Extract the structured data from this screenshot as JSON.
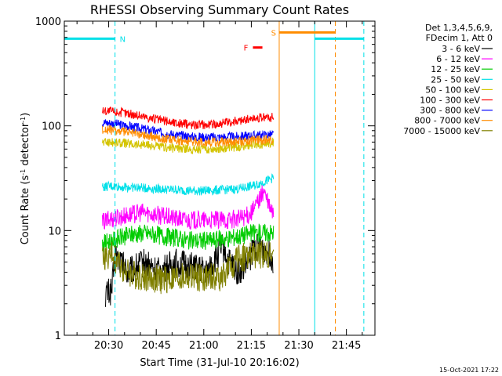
{
  "chart_data": {
    "type": "line",
    "title": "RHESSI Observing Summary Count Rates",
    "xlabel": "Start Time (31-Jul-10 20:16:02)",
    "ylabel_main": "Count Rate (s",
    "ylabel_sup1": "-1",
    "ylabel_mid": " detector",
    "ylabel_sup2": "-1",
    "ylabel_end": ")",
    "yscale": "log",
    "ylim": [
      1,
      1000
    ],
    "xlim_minutes": [
      0,
      98
    ],
    "x_ticks": [
      {
        "minutes": 14,
        "label": "20:30"
      },
      {
        "minutes": 29,
        "label": "20:45"
      },
      {
        "minutes": 44,
        "label": "21:00"
      },
      {
        "minutes": 59,
        "label": "21:15"
      },
      {
        "minutes": 74,
        "label": "21:30"
      },
      {
        "minutes": 89,
        "label": "21:45"
      }
    ],
    "y_ticks": [
      {
        "value": 1,
        "label": "1"
      },
      {
        "value": 10,
        "label": "10"
      },
      {
        "value": 100,
        "label": "100"
      },
      {
        "value": 1000,
        "label": "1000"
      }
    ],
    "legend_header": [
      "Det 1,3,4,5,6,9,",
      "FDecim 1, Att 0"
    ],
    "legend_position": "right",
    "series": [
      {
        "name": "3 - 6 keV",
        "color": "#000000",
        "x": [
          13,
          14,
          15,
          16,
          20,
          25,
          30,
          35,
          40,
          45,
          50,
          52,
          55,
          58,
          60,
          62,
          65,
          66
        ],
        "y": [
          2.5,
          2.6,
          2.7,
          6,
          4,
          5,
          4,
          5,
          4.5,
          4,
          7,
          5,
          4,
          5,
          7,
          7,
          6,
          5
        ]
      },
      {
        "name": "6 - 12 keV",
        "color": "#ff00ff",
        "x": [
          12,
          15,
          20,
          25,
          30,
          35,
          40,
          45,
          50,
          55,
          58,
          60,
          61,
          62,
          63,
          64,
          65,
          66
        ],
        "y": [
          12,
          13,
          14,
          15,
          14,
          13,
          12.5,
          12.5,
          12.5,
          13,
          14,
          16,
          19,
          21,
          24,
          19,
          16,
          14
        ]
      },
      {
        "name": "12 - 25 keV",
        "color": "#00cc00",
        "x": [
          12,
          15,
          20,
          25,
          30,
          35,
          40,
          45,
          50,
          55,
          60,
          62,
          64,
          66
        ],
        "y": [
          7.5,
          8,
          9,
          9.5,
          9,
          8.5,
          8,
          8,
          8.3,
          8.8,
          9.5,
          9.5,
          9.5,
          9.5
        ]
      },
      {
        "name": "25 - 50 keV",
        "color": "#00e0e8",
        "x": [
          12,
          15,
          20,
          25,
          30,
          35,
          40,
          45,
          50,
          55,
          60,
          64,
          66
        ],
        "y": [
          26,
          26.5,
          26,
          25.5,
          25,
          24.5,
          24,
          24,
          24.5,
          25,
          27,
          30,
          32
        ]
      },
      {
        "name": "50 - 100 keV",
        "color": "#d4c400",
        "x": [
          12,
          15,
          20,
          25,
          30,
          35,
          40,
          45,
          50,
          55,
          60,
          64,
          66
        ],
        "y": [
          70,
          70,
          68,
          66,
          63,
          61,
          60,
          60,
          61,
          63,
          66,
          68,
          70
        ]
      },
      {
        "name": "100 - 300 keV",
        "color": "#ff0000",
        "x": [
          12,
          15,
          20,
          25,
          30,
          35,
          40,
          45,
          50,
          55,
          60,
          64,
          66
        ],
        "y": [
          140,
          138,
          132,
          123,
          114,
          107,
          103,
          103,
          106,
          112,
          118,
          120,
          120
        ]
      },
      {
        "name": "300 - 800 keV",
        "color": "#0000ff",
        "x": [
          12,
          15,
          20,
          25,
          30,
          35,
          40,
          45,
          50,
          55,
          60,
          64,
          66
        ],
        "y": [
          108,
          106,
          100,
          93,
          87,
          82,
          79,
          78,
          78,
          79,
          81,
          82,
          82
        ]
      },
      {
        "name": "800 - 7000 keV",
        "color": "#ff8c00",
        "x": [
          12,
          15,
          20,
          25,
          30,
          35,
          40,
          45,
          50,
          55,
          60,
          64,
          66
        ],
        "y": [
          92,
          91,
          87,
          82,
          77,
          73,
          71,
          70,
          70,
          71,
          73,
          74,
          75
        ]
      },
      {
        "name": "7000 - 15000 keV",
        "color": "#808000",
        "x": [
          12,
          14,
          15,
          20,
          25,
          30,
          35,
          40,
          45,
          50,
          55,
          60,
          64,
          66
        ],
        "y": [
          5.5,
          5.6,
          5.8,
          4,
          3.6,
          3.4,
          3.5,
          3.6,
          3.5,
          3.6,
          5.5,
          5.8,
          6,
          5.8
        ]
      }
    ],
    "state_bars": [
      {
        "label": "N",
        "color": "#00e0e8",
        "start": 0,
        "end": 16,
        "level": 680
      },
      {
        "label": "",
        "color": "#00e0e8",
        "start": 79,
        "end": 94.5,
        "level": 680
      },
      {
        "label": "S",
        "color": "#ff8c00",
        "start": 67.8,
        "end": 85.5,
        "level": 780
      },
      {
        "label": "F",
        "color": "#ff0000",
        "start": 59.5,
        "end": 62.5,
        "level": 560
      }
    ],
    "vertical_lines": [
      {
        "color": "#00e0e8",
        "minutes": 0,
        "dashed": false
      },
      {
        "color": "#00e0e8",
        "minutes": 16,
        "dashed": true
      },
      {
        "color": "#00e0e8",
        "minutes": 79,
        "dashed": false
      },
      {
        "color": "#00e0e8",
        "minutes": 94.5,
        "dashed": true
      },
      {
        "color": "#ff8c00",
        "minutes": 67.8,
        "dashed": false
      },
      {
        "color": "#ff8c00",
        "minutes": 85.5,
        "dashed": true
      }
    ],
    "footer_date": "15-Oct-2021 17:22"
  }
}
